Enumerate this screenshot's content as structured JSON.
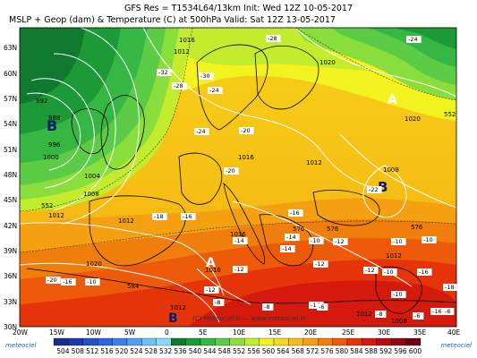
{
  "header": {
    "line1": "GFS Res = T1534L64/13km   Init: Wed 12Z 10-05-2017",
    "line2": "MSLP + Geop (dam) & Temperature (C) at 500hPa   Valid: Sat 12Z 13-05-2017"
  },
  "axes": {
    "lat_labels": [
      "63N",
      "60N",
      "57N",
      "54N",
      "51N",
      "48N",
      "45N",
      "42N",
      "39N",
      "36N",
      "33N",
      "30N"
    ],
    "lon_labels": [
      "20W",
      "15W",
      "10W",
      "5W",
      "0",
      "5E",
      "10E",
      "15E",
      "20E",
      "25E",
      "30E",
      "35E",
      "40E"
    ]
  },
  "colorbar": {
    "labels": [
      "504",
      "508",
      "512",
      "516",
      "520",
      "524",
      "528",
      "532",
      "536",
      "540",
      "544",
      "548",
      "552",
      "556",
      "560",
      "564",
      "568",
      "572",
      "576",
      "580",
      "584",
      "588",
      "592",
      "596",
      "600"
    ],
    "colors": [
      "#1c2a8a",
      "#1f39a8",
      "#2450c6",
      "#2a68dc",
      "#3a82e8",
      "#52a0f0",
      "#6cc0f4",
      "#8cd8f2",
      "#0f7a2e",
      "#1c9a38",
      "#36b642",
      "#5ccc46",
      "#8ade3c",
      "#c4ec2e",
      "#f2f21e",
      "#f6da18",
      "#f6be14",
      "#f4a010",
      "#f07e0c",
      "#ec5a0a",
      "#e6340a",
      "#d41a0c",
      "#b40c12",
      "#8c0812",
      "#6a0412"
    ]
  },
  "pressure_centers": [
    {
      "label": "B",
      "kind": "low"
    },
    {
      "label": "A",
      "kind": "high"
    },
    {
      "label": "B",
      "kind": "low"
    },
    {
      "label": "A",
      "kind": "high"
    },
    {
      "label": "B",
      "kind": "low"
    }
  ],
  "isobar_labels": [
    "1016",
    "1012",
    "1020",
    "992",
    "988",
    "996",
    "1000",
    "1004",
    "1008",
    "1012",
    "1012",
    "1016",
    "1012",
    "1016",
    "1020",
    "1008",
    "1016",
    "1012",
    "1012",
    "1020",
    "1012",
    "1008"
  ],
  "geop_labels": [
    "552",
    "552",
    "576",
    "576",
    "576",
    "584"
  ],
  "temp_labels": [
    "-28",
    "-24",
    "-32",
    "-30",
    "-24",
    "-28",
    "-20",
    "-24",
    "-20",
    "-22",
    "-18",
    "-16",
    "-16",
    "-14",
    "-10",
    "-14",
    "-14",
    "-12",
    "-10",
    "-10",
    "-10",
    "-12",
    "-10",
    "-12",
    "-12",
    "-16",
    "-20",
    "-16",
    "-18",
    "-12",
    "-8",
    "-8",
    "-16",
    "-10",
    "-8",
    "-16",
    "-6",
    "-6",
    "-6"
  ],
  "credit": "(C) Meteociel.fr — www.meteociel.fr",
  "logo_left": "meteociel",
  "logo_right": "meteociel"
}
